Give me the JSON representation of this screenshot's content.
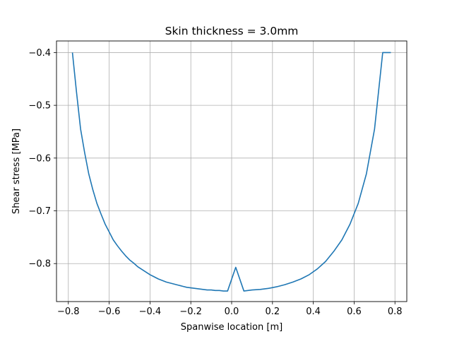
{
  "chart_data": {
    "type": "line",
    "title": "Skin thickness = 3.0mm",
    "xlabel": "Spanwise location [m]",
    "ylabel": "Shear stress [MPa]",
    "xlim": [
      -0.858,
      0.858
    ],
    "ylim": [
      -0.872,
      -0.378
    ],
    "xticks": [
      -0.8,
      -0.6,
      -0.4,
      -0.2,
      0.0,
      0.2,
      0.4,
      0.6,
      0.8
    ],
    "xtick_labels": [
      "−0.8",
      "−0.6",
      "−0.4",
      "−0.2",
      "0.0",
      "0.2",
      "0.4",
      "0.6",
      "0.8"
    ],
    "yticks": [
      -0.8,
      -0.7,
      -0.6,
      -0.5,
      -0.4
    ],
    "ytick_labels": [
      "−0.8",
      "−0.7",
      "−0.6",
      "−0.5",
      "−0.4"
    ],
    "grid": true,
    "series": [
      {
        "color": "#1f77b4",
        "x": [
          -0.78,
          -0.76,
          -0.74,
          -0.72,
          -0.7,
          -0.68,
          -0.66,
          -0.64,
          -0.62,
          -0.6,
          -0.58,
          -0.56,
          -0.54,
          -0.52,
          -0.5,
          -0.48,
          -0.46,
          -0.44,
          -0.42,
          -0.4,
          -0.38,
          -0.36,
          -0.34,
          -0.32,
          -0.3,
          -0.28,
          -0.26,
          -0.24,
          -0.22,
          -0.2,
          -0.18,
          -0.16,
          -0.14,
          -0.12,
          -0.1,
          -0.08,
          -0.06,
          -0.04,
          -0.02,
          0.02,
          0.06,
          0.1,
          0.14,
          0.18,
          0.22,
          0.26,
          0.3,
          0.34,
          0.38,
          0.42,
          0.46,
          0.5,
          0.54,
          0.58,
          0.62,
          0.66,
          0.7,
          0.74,
          0.78
        ],
        "y": [
          -0.4,
          -0.475,
          -0.545,
          -0.59,
          -0.63,
          -0.66,
          -0.686,
          -0.706,
          -0.725,
          -0.74,
          -0.755,
          -0.766,
          -0.776,
          -0.785,
          -0.793,
          -0.799,
          -0.806,
          -0.811,
          -0.816,
          -0.821,
          -0.825,
          -0.829,
          -0.832,
          -0.835,
          -0.837,
          -0.839,
          -0.841,
          -0.843,
          -0.845,
          -0.846,
          -0.847,
          -0.848,
          -0.849,
          -0.85,
          -0.85,
          -0.851,
          -0.851,
          -0.852,
          -0.852,
          -0.807,
          -0.852,
          -0.85,
          -0.849,
          -0.847,
          -0.844,
          -0.84,
          -0.835,
          -0.829,
          -0.821,
          -0.81,
          -0.796,
          -0.777,
          -0.755,
          -0.725,
          -0.686,
          -0.63,
          -0.545,
          -0.4,
          -0.4
        ]
      }
    ]
  }
}
